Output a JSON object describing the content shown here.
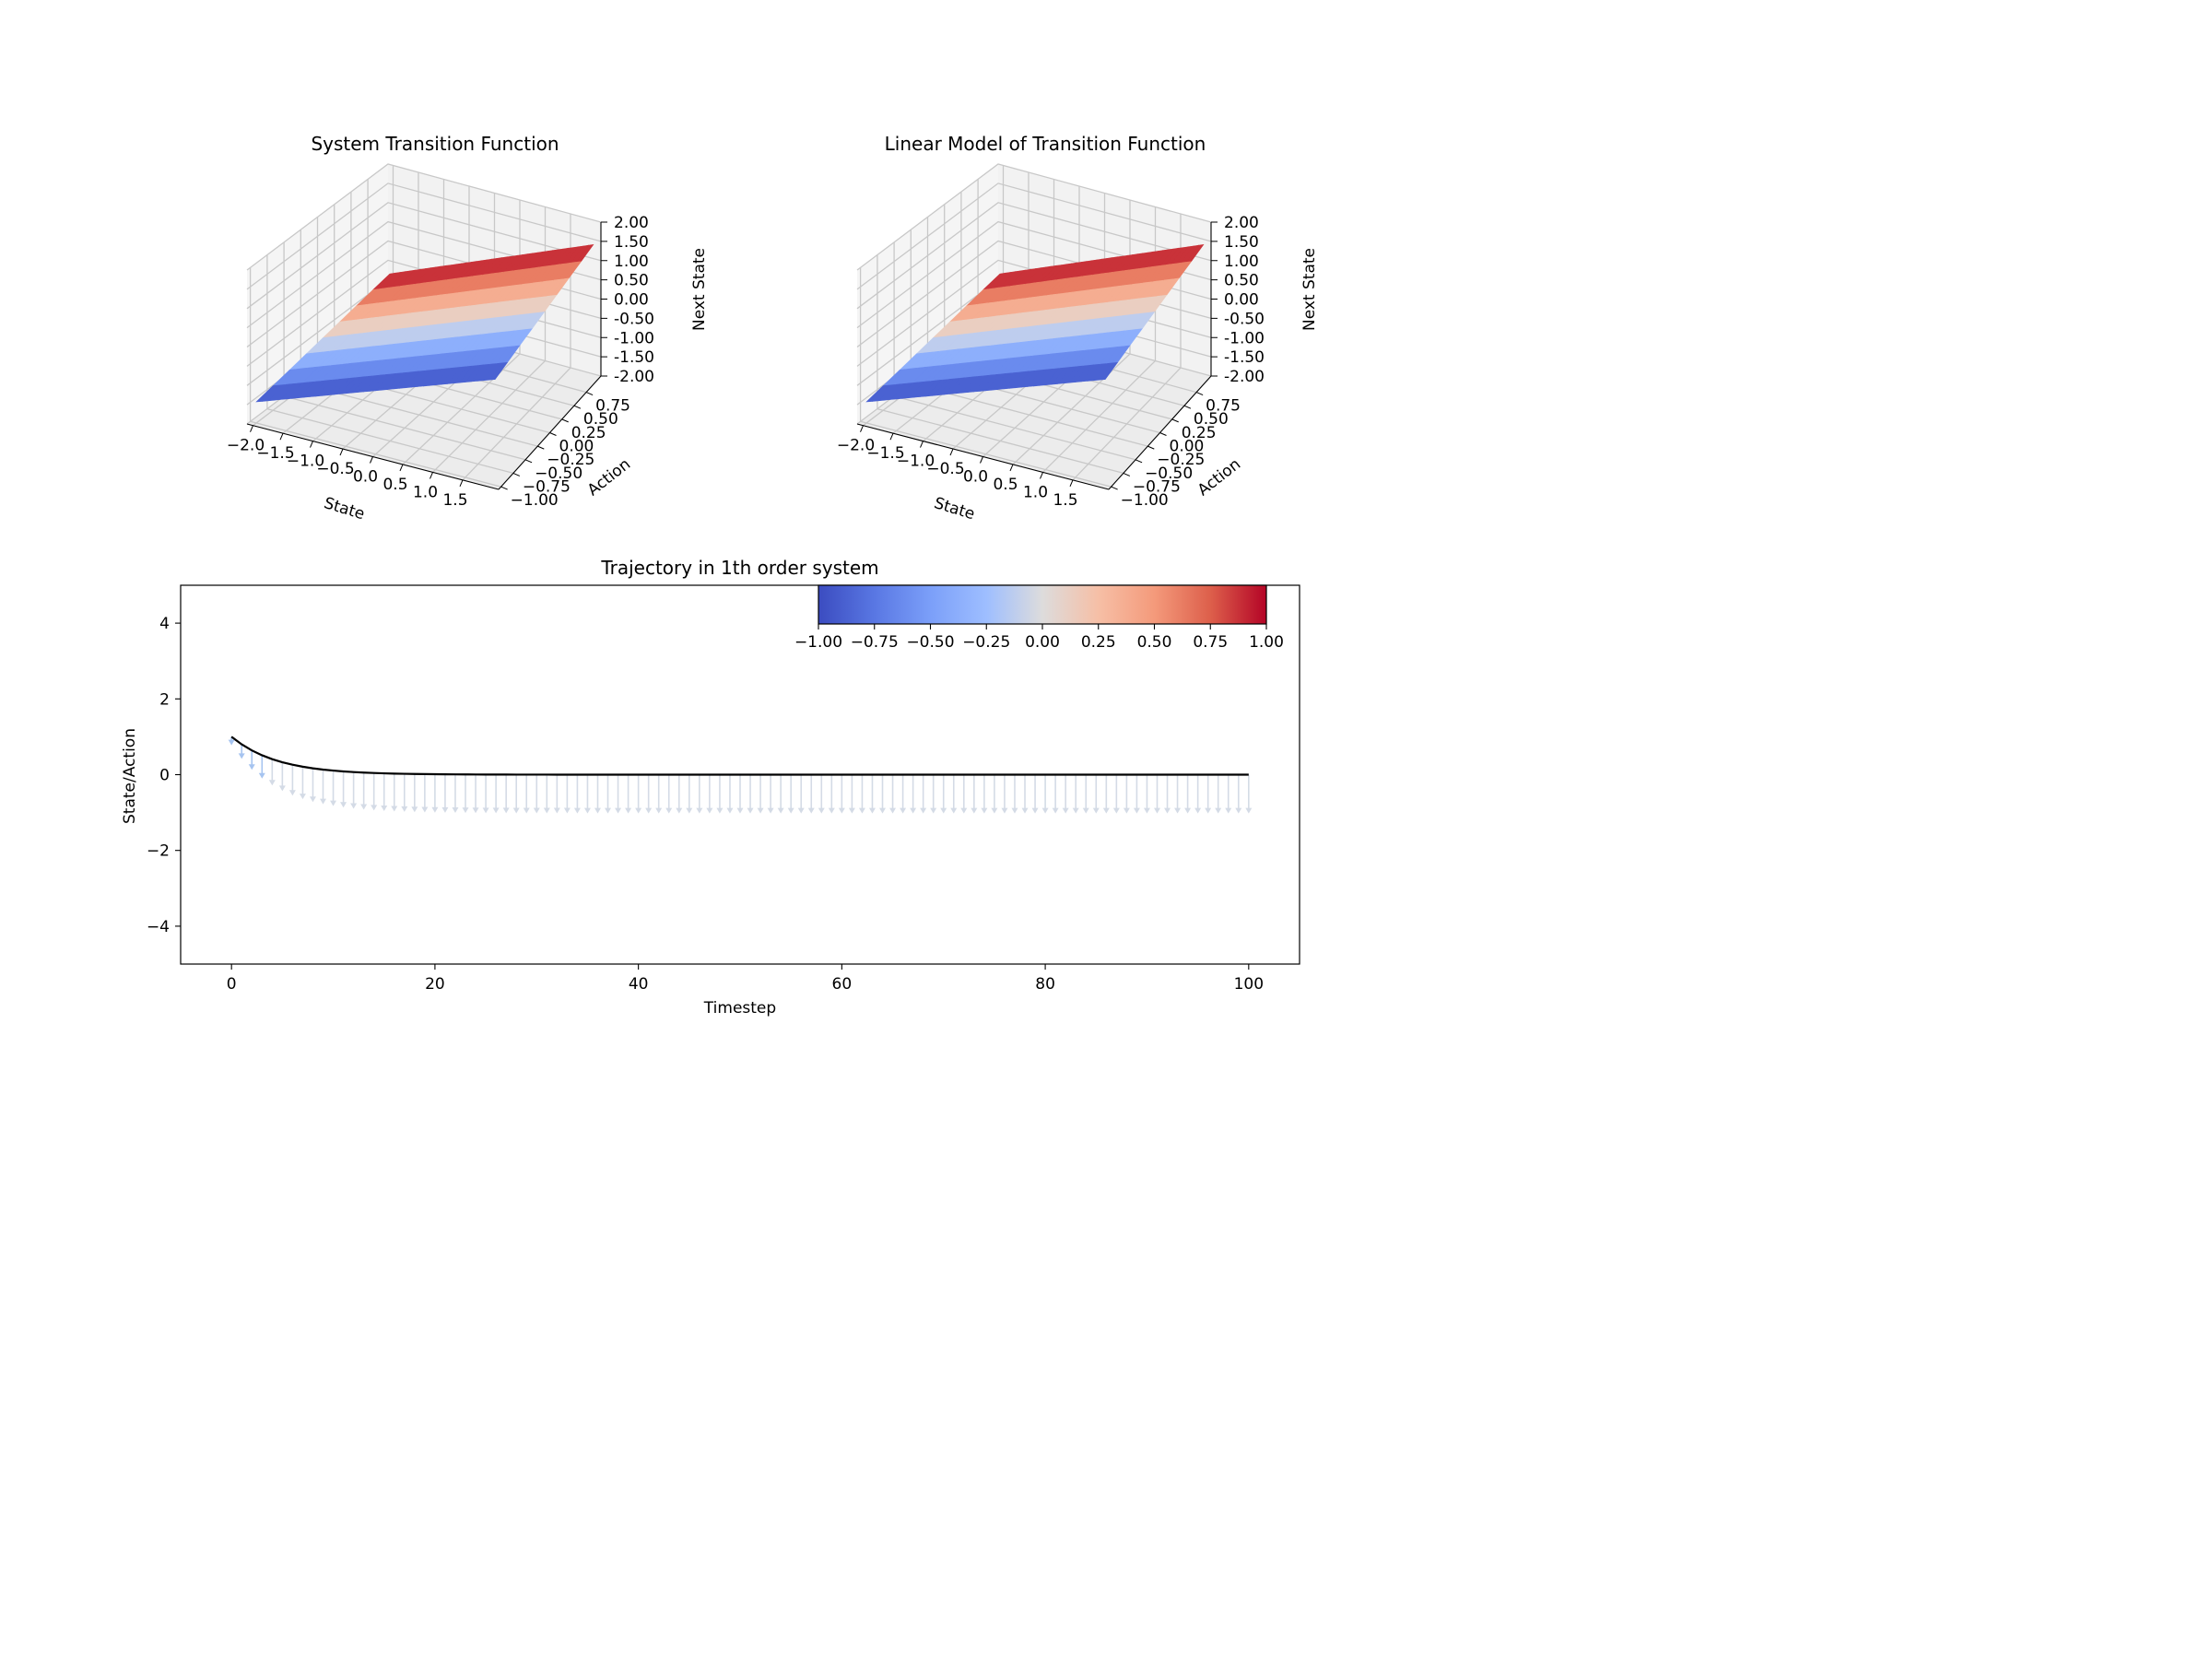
{
  "chart_data": [
    {
      "type": "surface",
      "title": "System Transition Function",
      "xlabel": "State",
      "ylabel": "Action",
      "zlabel": "Next State",
      "xlim": [
        -2.0,
        2.0
      ],
      "ylim": [
        -1.0,
        1.0
      ],
      "zlim": [
        -2.0,
        2.0
      ],
      "xticks": [
        "−2.0",
        "−1.5",
        "−1.0",
        "−0.5",
        "0.0",
        "0.5",
        "1.0",
        "1.5"
      ],
      "yticks": [
        "−1.00",
        "−0.75",
        "−0.50",
        "−0.25",
        "0.00",
        "0.25",
        "0.50",
        "0.75"
      ],
      "zticks": [
        "-2.00",
        "-1.50",
        "-1.00",
        "-0.50",
        "0.00",
        "0.50",
        "1.00",
        "1.50",
        "2.00"
      ],
      "colormap": "coolwarm",
      "grid": true
    },
    {
      "type": "surface",
      "title": "Linear Model of Transition Function",
      "xlabel": "State",
      "ylabel": "Action",
      "zlabel": "Next State",
      "xlim": [
        -2.0,
        2.0
      ],
      "ylim": [
        -1.0,
        1.0
      ],
      "zlim": [
        -2.0,
        2.0
      ],
      "xticks": [
        "−2.0",
        "−1.5",
        "−1.0",
        "−0.5",
        "0.0",
        "0.5",
        "1.0",
        "1.5"
      ],
      "yticks": [
        "−1.00",
        "−0.75",
        "−0.50",
        "−0.25",
        "0.00",
        "0.25",
        "0.50",
        "0.75"
      ],
      "zticks": [
        "-2.00",
        "-1.50",
        "-1.00",
        "-0.50",
        "0.00",
        "0.50",
        "1.00",
        "1.50",
        "2.00"
      ],
      "colormap": "coolwarm",
      "grid": true
    },
    {
      "type": "line",
      "title": "Trajectory in 1th order system",
      "xlabel": "Timestep",
      "ylabel": "State/Action",
      "xlim": [
        -5,
        105
      ],
      "ylim": [
        -5,
        5
      ],
      "xticks": [
        0,
        20,
        40,
        60,
        80,
        100
      ],
      "yticks": [
        -4,
        -2,
        0,
        2,
        4
      ],
      "state_series": {
        "x_start": 0,
        "x_end": 100,
        "initial_value": 1.0,
        "decay_factor": 0.8,
        "color": "#000000"
      },
      "action_arrows": {
        "description_colors": [
          "#a6c4f0",
          "#d4dbe6"
        ],
        "start_length": 0.2,
        "final_length": 1.0
      },
      "colorbar": {
        "colormap": "coolwarm",
        "range": [
          -1.0,
          1.0
        ],
        "ticks": [
          "−1.00",
          "−0.75",
          "−0.50",
          "−0.25",
          "0.00",
          "0.25",
          "0.50",
          "0.75",
          "1.00"
        ],
        "placement": "top-right"
      },
      "grid": false
    }
  ],
  "colors": {
    "coolwarm_low": "#3b4cc0",
    "coolwarm_mid": "#dddcdc",
    "coolwarm_high": "#b40426",
    "pane": "#f2f2f2",
    "grid": "#c8c8c8"
  }
}
